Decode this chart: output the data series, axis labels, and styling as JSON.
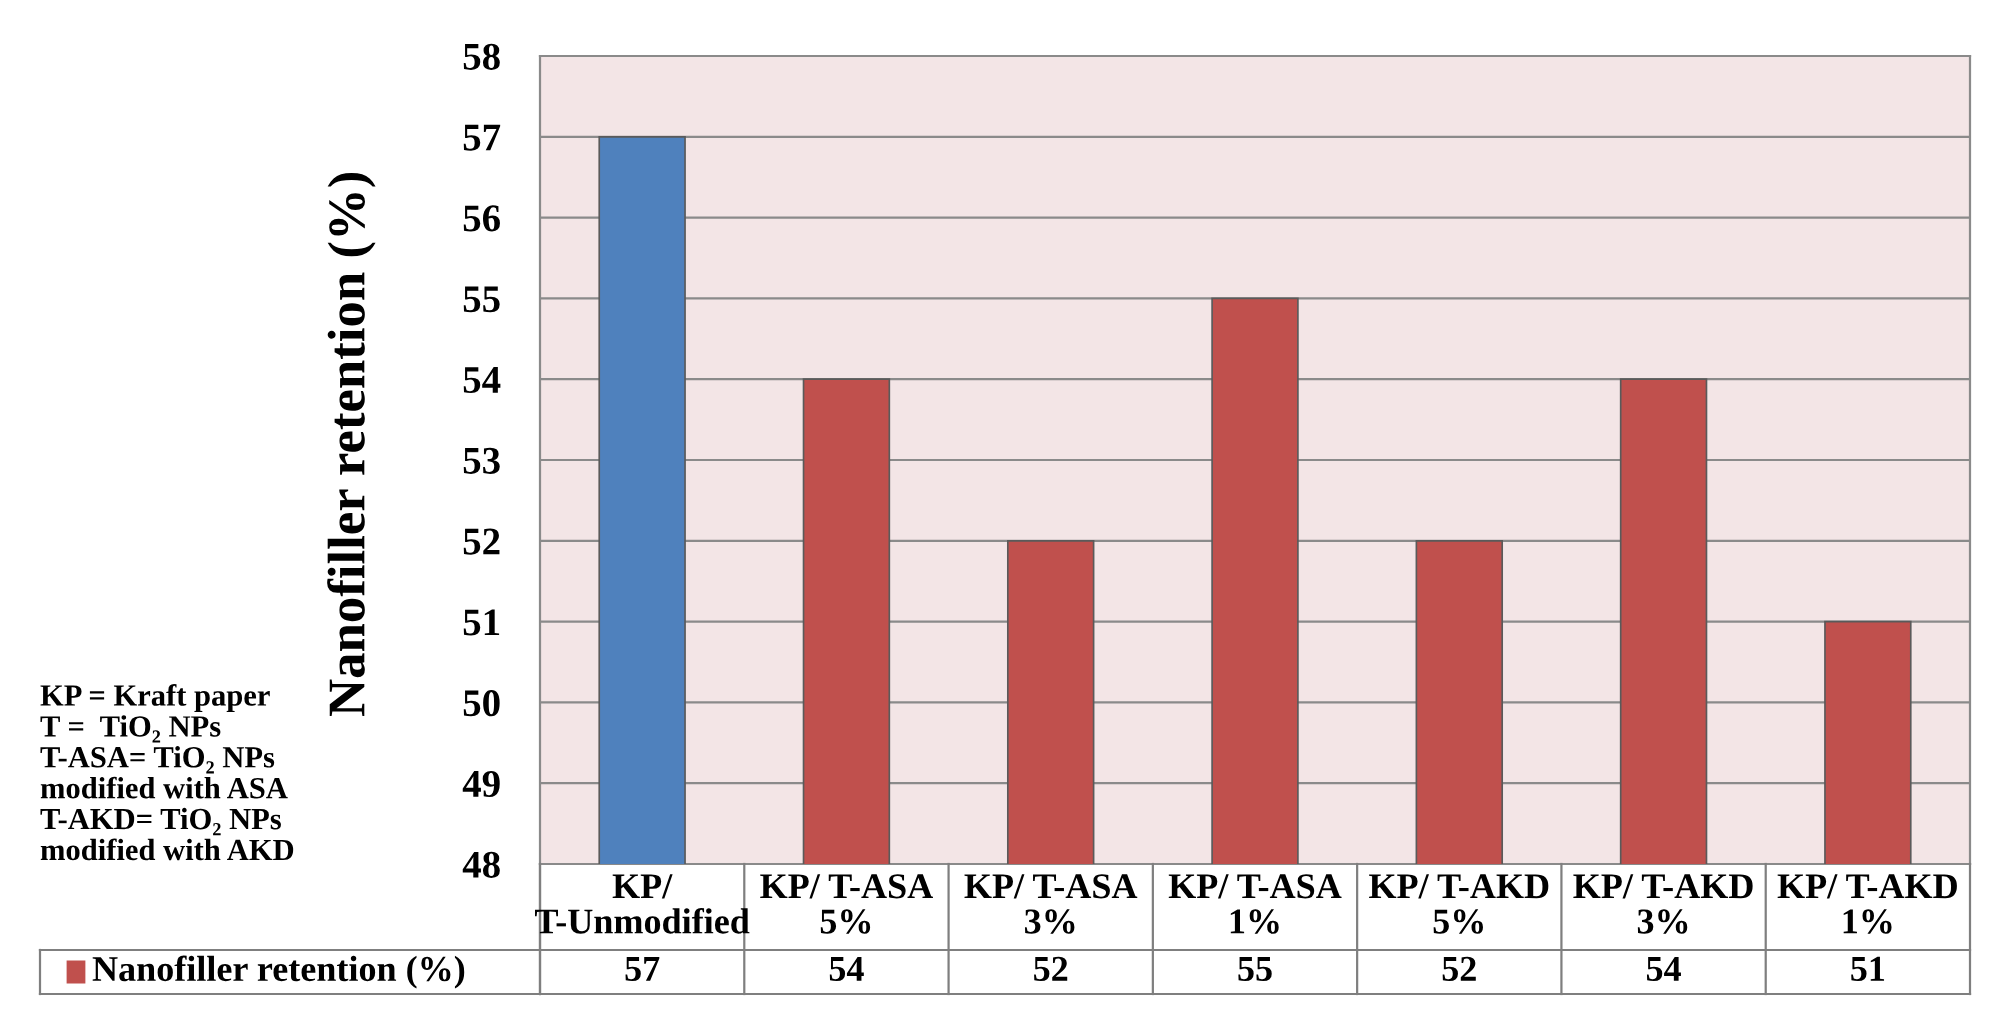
{
  "chart_data": {
    "type": "bar",
    "ylabel": "Nanofiller retention (%)",
    "categories": [
      "KP/ T-Unmodified",
      "KP/ T-ASA 5%",
      "KP/ T-ASA 3%",
      "KP/ T-ASA 1%",
      "KP/ T-AKD 5%",
      "KP/ T-AKD 3%",
      "KP/ T-AKD 1%"
    ],
    "series": [
      {
        "name": "Nanofiller retention (%)",
        "color": "#c0504d",
        "colors": [
          "#4f81bd",
          "#c0504d",
          "#c0504d",
          "#c0504d",
          "#c0504d",
          "#c0504d",
          "#c0504d"
        ],
        "values": [
          57,
          54,
          52,
          55,
          52,
          54,
          51
        ]
      }
    ],
    "ylim": [
      48,
      58
    ],
    "yticks": [
      48,
      49,
      50,
      51,
      52,
      53,
      54,
      55,
      56,
      57,
      58
    ],
    "grid": "y",
    "data_labels": true,
    "annotations": [
      "KP = Kraft paper\nT =  TiO₂ NPs\nT-ASA= TiO₂ NPs\nmodified with ASA\nT-AKD= TiO₂ NPs\nmodified with AKD"
    ]
  }
}
